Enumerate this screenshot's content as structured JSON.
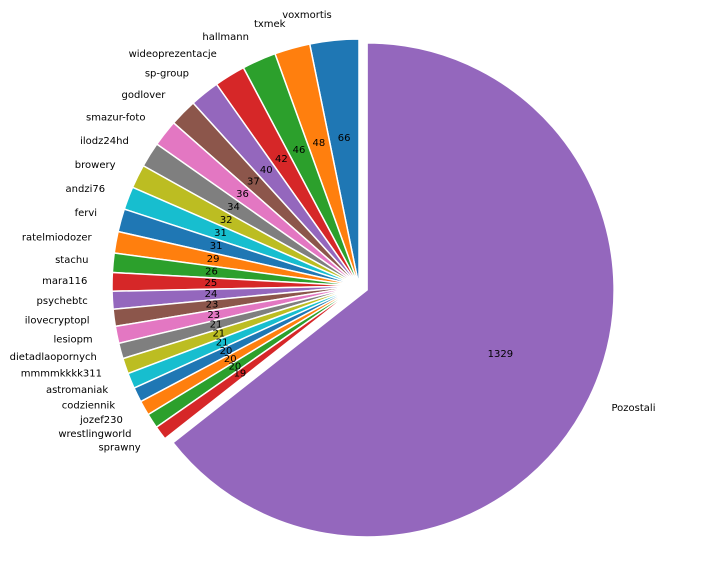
{
  "chart_data": {
    "type": "pie",
    "title": "",
    "start_angle_deg": 90,
    "counterclock": true,
    "categories": [
      "voxmortis",
      "txmek",
      "hallmann",
      "wideoprezentacje",
      "sp-group",
      "godlover",
      "smazur-foto",
      "ilodz24hd",
      "browery",
      "andzi76",
      "fervi",
      "ratelmiodozer",
      "stachu",
      "mara116",
      "psychebtc",
      "ilovecryptopl",
      "lesiopm",
      "dietadlaopornych",
      "mmmmkkkk311",
      "astromaniak",
      "codziennik",
      "jozef230",
      "wrestlingworld",
      "sprawny",
      "Pozostali"
    ],
    "values": [
      66,
      48,
      46,
      42,
      40,
      37,
      36,
      34,
      32,
      31,
      31,
      29,
      26,
      25,
      24,
      23,
      23,
      21,
      21,
      21,
      20,
      20,
      20,
      19,
      1329
    ],
    "value_labels": [
      "66",
      "48",
      "46",
      "42",
      "40",
      "37",
      "36",
      "34",
      "32",
      "31",
      "31",
      "29",
      "26",
      "25",
      "24",
      "23",
      "23",
      "21",
      "21",
      "21",
      "20",
      "20",
      "20",
      "19",
      "1329"
    ],
    "colors": [
      "#1f77b4",
      "#ff7f0e",
      "#2ca02c",
      "#d62728",
      "#9467bd",
      "#8c564b",
      "#e377c2",
      "#7f7f7f",
      "#bcbd22",
      "#17becf",
      "#1f77b4",
      "#ff7f0e",
      "#2ca02c",
      "#d62728",
      "#9467bd",
      "#8c564b",
      "#e377c2",
      "#7f7f7f",
      "#bcbd22",
      "#17becf",
      "#1f77b4",
      "#ff7f0e",
      "#2ca02c",
      "#d62728",
      "#9467bd"
    ],
    "explode_index": 24,
    "legend": "none"
  }
}
